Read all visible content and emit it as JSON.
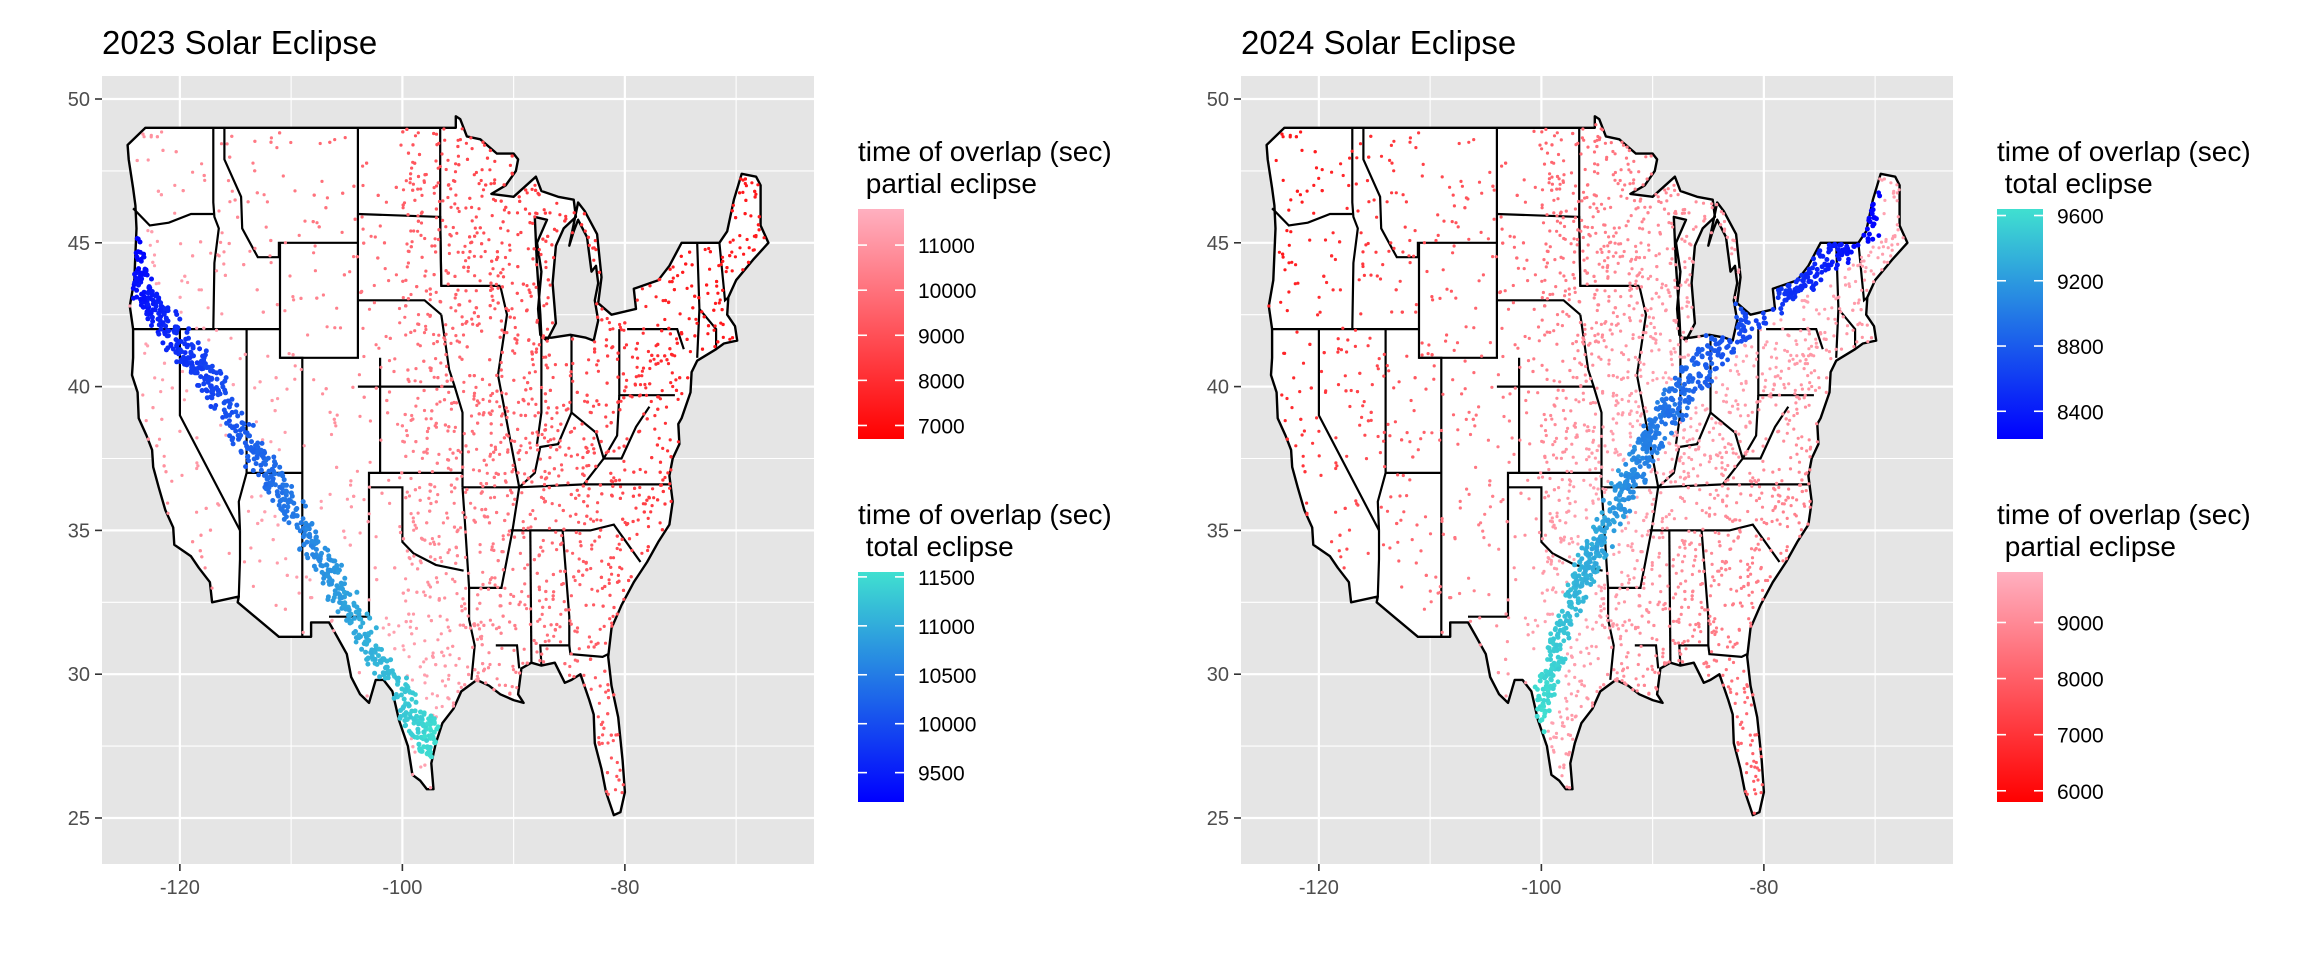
{
  "chart_data": [
    {
      "type": "map-scatter",
      "title": "2023 Solar Eclipse",
      "xlabel": "",
      "ylabel": "",
      "xlim": [
        -127,
        -63
      ],
      "ylim": [
        23.4,
        50.8
      ],
      "x_ticks": [
        -120,
        -100,
        -80
      ],
      "y_ticks": [
        25,
        30,
        35,
        40,
        45,
        50
      ],
      "grid": true,
      "colors": {
        "panel_bg": "#e5e5e5",
        "grid": "#ffffff",
        "outline": "#000000"
      },
      "path": {
        "kind": "annular",
        "points": [
          [
            -124.2,
            44.8
          ],
          [
            -123.5,
            43.5
          ],
          [
            -122.0,
            42.5
          ],
          [
            -119.8,
            41.5
          ],
          [
            -118.0,
            40.6
          ],
          [
            -115.7,
            39.3
          ],
          [
            -113.6,
            37.8
          ],
          [
            -111.2,
            36.5
          ],
          [
            -109.0,
            35.2
          ],
          [
            -107.1,
            33.9
          ],
          [
            -105.2,
            32.6
          ],
          [
            -103.0,
            31.1
          ],
          [
            -100.7,
            29.6
          ],
          [
            -98.4,
            28.3
          ],
          [
            -97.2,
            27.5
          ]
        ],
        "width_deg": 1.6
      },
      "legends": [
        {
          "title_line1": "time of overlap (sec)",
          "title_line2": " partial eclipse",
          "range": [
            6700,
            11800
          ],
          "color_low": "#ff0000",
          "color_high": "#ffb0c0",
          "ticks": [
            7000,
            8000,
            9000,
            10000,
            11000
          ]
        },
        {
          "title_line1": "time of overlap (sec)",
          "title_line2": " total eclipse",
          "range": [
            9200,
            11550
          ],
          "color_low": "#0000ff",
          "color_high": "#40e0d0",
          "ticks": [
            9500,
            10000,
            10500,
            11000,
            11500
          ]
        }
      ]
    },
    {
      "type": "map-scatter",
      "title": "2024 Solar Eclipse",
      "xlabel": "",
      "ylabel": "",
      "xlim": [
        -127,
        -63
      ],
      "ylim": [
        23.4,
        50.8
      ],
      "x_ticks": [
        -120,
        -100,
        -80
      ],
      "y_ticks": [
        25,
        30,
        35,
        40,
        45,
        50
      ],
      "grid": true,
      "colors": {
        "panel_bg": "#e5e5e5",
        "grid": "#ffffff",
        "outline": "#000000"
      },
      "path": {
        "kind": "total",
        "points": [
          [
            -100.2,
            28.6
          ],
          [
            -98.5,
            31.0
          ],
          [
            -96.5,
            33.2
          ],
          [
            -94.0,
            35.3
          ],
          [
            -91.5,
            37.2
          ],
          [
            -88.5,
            39.2
          ],
          [
            -85.0,
            41.0
          ],
          [
            -81.0,
            42.7
          ],
          [
            -77.0,
            43.8
          ],
          [
            -73.0,
            45.0
          ],
          [
            -70.0,
            46.0
          ]
        ],
        "width_deg": 1.7
      },
      "legends": [
        {
          "title_line1": "time of overlap (sec)",
          "title_line2": " total eclipse",
          "range": [
            8230,
            9640
          ],
          "color_low": "#0000ff",
          "color_high": "#40e0d0",
          "ticks": [
            8400,
            8800,
            9200,
            9600
          ]
        },
        {
          "title_line1": "time of overlap (sec)",
          "title_line2": " partial eclipse",
          "range": [
            5800,
            9900
          ],
          "color_low": "#ff0000",
          "color_high": "#ffb0c0",
          "ticks": [
            6000,
            7000,
            8000,
            9000
          ]
        }
      ]
    }
  ]
}
